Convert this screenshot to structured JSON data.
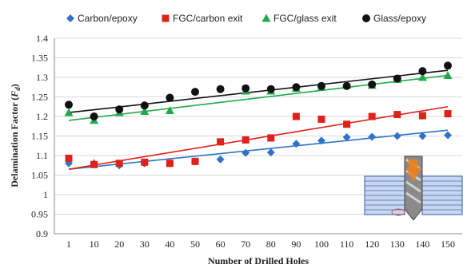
{
  "chart_data": {
    "type": "scatter",
    "xlabel": "Number of Drilled Holes",
    "ylabel_main": "Delamination Factor (",
    "ylabel_symbol": "F",
    "ylabel_sub": "d",
    "ylabel_close": ")",
    "ylim": [
      0.9,
      1.4
    ],
    "yticks": [
      "0.9",
      "0.95",
      "1",
      "1.05",
      "1.1",
      "1.15",
      "1.2",
      "1.25",
      "1.3",
      "1.35",
      "1.4"
    ],
    "categories": [
      "1",
      "10",
      "20",
      "30",
      "40",
      "50",
      "60",
      "70",
      "80",
      "90",
      "100",
      "110",
      "120",
      "130",
      "140",
      "150"
    ],
    "grid": "horizontal",
    "legend_position": "top",
    "series": [
      {
        "name": "Carbon/epoxy",
        "marker": "diamond",
        "color": "#2e75c7",
        "values": [
          1.08,
          1.08,
          1.075,
          1.08,
          1.08,
          1.085,
          1.09,
          1.107,
          1.108,
          1.13,
          1.138,
          1.147,
          1.148,
          1.15,
          1.15,
          1.152
        ],
        "trend": [
          1.065,
          1.165
        ]
      },
      {
        "name": "FGC/carbon exit",
        "marker": "square",
        "color": "#e0201a",
        "values": [
          1.093,
          1.077,
          1.08,
          1.083,
          1.08,
          1.085,
          1.135,
          1.14,
          1.145,
          1.2,
          1.193,
          1.18,
          1.2,
          1.205,
          1.202,
          1.207
        ],
        "trend": [
          1.065,
          1.225
        ]
      },
      {
        "name": "FGC/glass exit",
        "marker": "triangle",
        "color": "#1faa4b",
        "values": [
          1.21,
          1.19,
          1.21,
          1.213,
          1.215,
          null,
          null,
          1.265,
          1.265,
          1.272,
          1.275,
          1.28,
          1.28,
          1.295,
          1.3,
          1.305
        ],
        "trend": [
          1.19,
          1.305
        ]
      },
      {
        "name": "Glass/epoxy",
        "marker": "circle",
        "color": "#111111",
        "values": [
          1.23,
          1.2,
          1.218,
          1.228,
          1.248,
          1.263,
          1.27,
          1.272,
          1.27,
          1.275,
          1.278,
          1.278,
          1.282,
          1.297,
          1.316,
          1.33
        ],
        "trend": [
          1.21,
          1.318
        ]
      }
    ]
  }
}
